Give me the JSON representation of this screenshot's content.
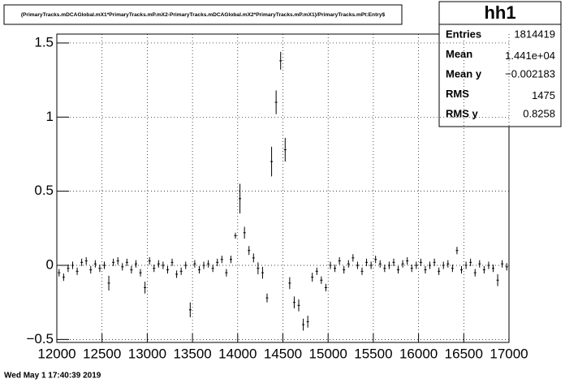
{
  "chart_data": {
    "type": "profile",
    "title": "(PrimaryTracks.mDCAGlobal.mX1*PrimaryTracks.mP.mX2-PrimaryTracks.mDCAGlobal.mX2*PrimaryTracks.mP.mX1)/PrimaryTracks.mPt:Entry$",
    "color": "#000000",
    "grid": true,
    "xlim": [
      12000,
      17000
    ],
    "ylim": [
      -0.52,
      1.56
    ],
    "xticks": [
      12000,
      12500,
      13000,
      13500,
      14000,
      14500,
      15000,
      15500,
      16000,
      16500,
      17000
    ],
    "yticks": [
      {
        "value": -0.5,
        "label": "−0.5"
      },
      0,
      0.5,
      1,
      1.5
    ],
    "x": [
      12025,
      12075,
      12125,
      12175,
      12225,
      12275,
      12325,
      12375,
      12425,
      12475,
      12525,
      12575,
      12625,
      12675,
      12725,
      12775,
      12825,
      12875,
      12925,
      12975,
      13025,
      13075,
      13125,
      13175,
      13225,
      13275,
      13325,
      13375,
      13425,
      13475,
      13525,
      13575,
      13625,
      13675,
      13725,
      13775,
      13825,
      13875,
      13925,
      13975,
      14025,
      14075,
      14125,
      14175,
      14225,
      14275,
      14325,
      14375,
      14425,
      14475,
      14525,
      14575,
      14625,
      14675,
      14725,
      14775,
      14825,
      14875,
      14925,
      14975,
      15025,
      15075,
      15125,
      15175,
      15225,
      15275,
      15325,
      15375,
      15425,
      15475,
      15525,
      15575,
      15625,
      15675,
      15725,
      15775,
      15825,
      15875,
      15925,
      15975,
      16025,
      16075,
      16125,
      16175,
      16225,
      16275,
      16325,
      16375,
      16425,
      16475,
      16525,
      16575,
      16625,
      16675,
      16725,
      16775,
      16825,
      16875,
      16925,
      16975
    ],
    "values": [
      -0.05,
      -0.08,
      -0.02,
      0.0,
      -0.04,
      0.02,
      0.03,
      -0.03,
      0.01,
      -0.02,
      0.0,
      -0.12,
      0.02,
      0.03,
      -0.01,
      0.02,
      -0.03,
      0.01,
      -0.05,
      -0.15,
      0.03,
      -0.02,
      0.01,
      0.0,
      -0.03,
      0.02,
      -0.06,
      -0.04,
      0.0,
      -0.3,
      0.01,
      -0.03,
      0.0,
      0.01,
      -0.02,
      0.02,
      0.04,
      -0.05,
      0.04,
      0.2,
      0.45,
      0.22,
      0.1,
      0.05,
      -0.02,
      -0.05,
      -0.22,
      0.7,
      1.1,
      1.38,
      0.78,
      -0.12,
      -0.25,
      -0.27,
      -0.4,
      -0.38,
      -0.08,
      -0.04,
      -0.1,
      -0.15,
      0.0,
      -0.02,
      0.03,
      -0.03,
      0.01,
      0.05,
      0.0,
      -0.04,
      0.02,
      0.0,
      0.04,
      0.01,
      -0.02,
      0.0,
      0.02,
      -0.03,
      0.01,
      0.03,
      -0.02,
      0.0,
      0.02,
      -0.03,
      0.0,
      0.02,
      -0.04,
      0.0,
      0.01,
      -0.02,
      0.1,
      -0.03,
      0.0,
      0.02,
      -0.05,
      0.01,
      -0.03,
      0.0,
      -0.02,
      -0.1,
      0.01,
      -0.01
    ],
    "errors": [
      0.025,
      0.025,
      0.025,
      0.025,
      0.025,
      0.025,
      0.025,
      0.025,
      0.025,
      0.025,
      0.025,
      0.05,
      0.025,
      0.025,
      0.025,
      0.025,
      0.025,
      0.025,
      0.025,
      0.04,
      0.025,
      0.025,
      0.025,
      0.025,
      0.025,
      0.025,
      0.025,
      0.025,
      0.025,
      0.05,
      0.025,
      0.025,
      0.025,
      0.025,
      0.025,
      0.025,
      0.025,
      0.025,
      0.025,
      0.02,
      0.1,
      0.04,
      0.03,
      0.03,
      0.04,
      0.04,
      0.03,
      0.1,
      0.08,
      0.06,
      0.08,
      0.04,
      0.04,
      0.04,
      0.04,
      0.04,
      0.03,
      0.025,
      0.025,
      0.025,
      0.025,
      0.025,
      0.025,
      0.025,
      0.025,
      0.025,
      0.025,
      0.025,
      0.025,
      0.025,
      0.025,
      0.025,
      0.025,
      0.025,
      0.025,
      0.025,
      0.025,
      0.025,
      0.025,
      0.025,
      0.025,
      0.025,
      0.025,
      0.025,
      0.025,
      0.025,
      0.025,
      0.025,
      0.025,
      0.025,
      0.025,
      0.025,
      0.025,
      0.025,
      0.025,
      0.025,
      0.025,
      0.04,
      0.025,
      0.025
    ]
  },
  "stats": {
    "name": "hh1",
    "rows": [
      {
        "label": "Entries",
        "value": "1814419"
      },
      {
        "label": "Mean",
        "value": "1.441e+04"
      },
      {
        "label": "Mean y",
        "value": "−0.002183"
      },
      {
        "label": "RMS",
        "value": "1475"
      },
      {
        "label": "RMS y",
        "value": "0.8258"
      }
    ]
  },
  "footer": "Wed May  1 17:40:39 2019"
}
